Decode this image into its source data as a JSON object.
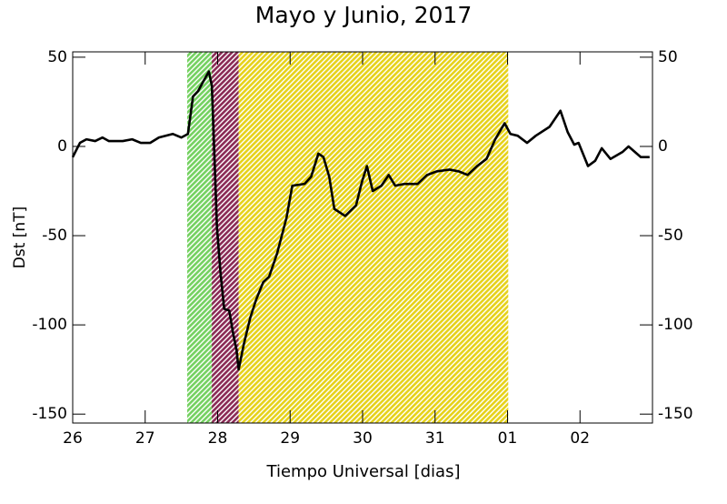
{
  "chart_data": {
    "type": "line",
    "title": "Mayo y Junio, 2017",
    "x_label": "Tiempo Universal [dias]",
    "y_label": "Dst [nT]",
    "xlim": [
      26,
      34
    ],
    "ylim": [
      -155,
      53
    ],
    "xticks": [
      26,
      27,
      28,
      29,
      30,
      31,
      {
        "value": 32,
        "label": "01"
      },
      {
        "value": 33,
        "label": "02"
      }
    ],
    "yticks": [
      -150,
      -100,
      -50,
      0,
      50
    ],
    "right_axis_labels": true,
    "regions": [
      {
        "start": 27.58,
        "end": 27.93,
        "color": "#74d160"
      },
      {
        "start": 27.92,
        "end": 28.29,
        "color": "#8a2a55"
      },
      {
        "start": 28.29,
        "end": 32.01,
        "color": "#e6d21a"
      }
    ],
    "x": [
      26.0,
      26.1,
      26.19,
      26.31,
      26.41,
      26.5,
      26.69,
      26.82,
      26.94,
      27.07,
      27.19,
      27.38,
      27.5,
      27.59,
      27.66,
      27.73,
      27.81,
      27.88,
      27.92,
      27.96,
      27.99,
      28.04,
      28.09,
      28.16,
      28.21,
      28.26,
      28.29,
      28.36,
      28.45,
      28.53,
      28.63,
      28.71,
      28.82,
      28.95,
      29.03,
      29.2,
      29.29,
      29.39,
      29.46,
      29.54,
      29.61,
      29.76,
      29.91,
      29.99,
      30.06,
      30.14,
      30.26,
      30.36,
      30.45,
      30.58,
      30.76,
      30.89,
      31.02,
      31.2,
      31.33,
      31.45,
      31.58,
      31.71,
      31.83,
      31.96,
      32.04,
      32.14,
      32.27,
      32.39,
      32.58,
      32.73,
      32.83,
      32.92,
      32.98,
      33.11,
      33.21,
      33.3,
      33.42,
      33.59,
      33.67,
      33.84,
      33.96
    ],
    "series": [
      {
        "color": "#000000",
        "values": [
          -6,
          2,
          4,
          3,
          5,
          3,
          3,
          4,
          2,
          2,
          5,
          7,
          5,
          7,
          28,
          31,
          37,
          42,
          34,
          -10,
          -45,
          -71,
          -91,
          -92,
          -104,
          -114,
          -125,
          -111,
          -96,
          -86,
          -76,
          -73,
          -60,
          -40,
          -22,
          -21,
          -17,
          -4,
          -6,
          -17,
          -35,
          -39,
          -33,
          -20,
          -11,
          -25,
          -22,
          -16,
          -22,
          -21,
          -21,
          -16,
          -14,
          -13,
          -14,
          -16,
          -11,
          -7,
          4,
          13,
          7,
          6,
          2,
          6,
          11,
          20,
          8,
          1,
          2,
          -11,
          -8,
          -1,
          -7,
          -3,
          0,
          -6,
          -6
        ]
      }
    ]
  }
}
